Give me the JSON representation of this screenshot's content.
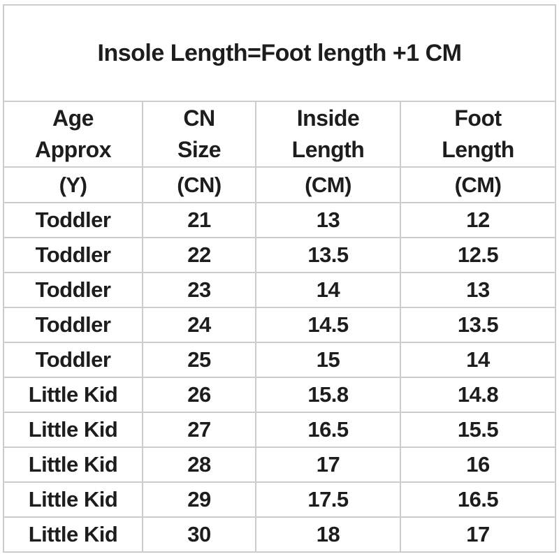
{
  "banner": {
    "text": "Insole Length=Foot length +1 CM"
  },
  "colors": {
    "banner_text": "#e41512",
    "body_text": "#1d1d1d",
    "grid_border": "#cccccc",
    "background": "#ffffff"
  },
  "size_chart": {
    "headers": [
      {
        "line1": "Age",
        "line2": "Approx",
        "unit": "(Y)"
      },
      {
        "line1": "CN",
        "line2": "Size",
        "unit": "(CN)"
      },
      {
        "line1": "Inside",
        "line2": "Length",
        "unit": "(CM)"
      },
      {
        "line1": "Foot",
        "line2": "Length",
        "unit": "(CM)"
      }
    ],
    "rows": [
      {
        "age": "Toddler",
        "cn_size": "21",
        "inside_length": "13",
        "foot_length": "12"
      },
      {
        "age": "Toddler",
        "cn_size": "22",
        "inside_length": "13.5",
        "foot_length": "12.5"
      },
      {
        "age": "Toddler",
        "cn_size": "23",
        "inside_length": "14",
        "foot_length": "13"
      },
      {
        "age": "Toddler",
        "cn_size": "24",
        "inside_length": "14.5",
        "foot_length": "13.5"
      },
      {
        "age": "Toddler",
        "cn_size": "25",
        "inside_length": "15",
        "foot_length": "14"
      },
      {
        "age": "Little Kid",
        "cn_size": "26",
        "inside_length": "15.8",
        "foot_length": "14.8"
      },
      {
        "age": "Little Kid",
        "cn_size": "27",
        "inside_length": "16.5",
        "foot_length": "15.5"
      },
      {
        "age": "Little Kid",
        "cn_size": "28",
        "inside_length": "17",
        "foot_length": "16"
      },
      {
        "age": "Little Kid",
        "cn_size": "29",
        "inside_length": "17.5",
        "foot_length": "16.5"
      },
      {
        "age": "Little Kid",
        "cn_size": "30",
        "inside_length": "18",
        "foot_length": "17"
      }
    ]
  }
}
